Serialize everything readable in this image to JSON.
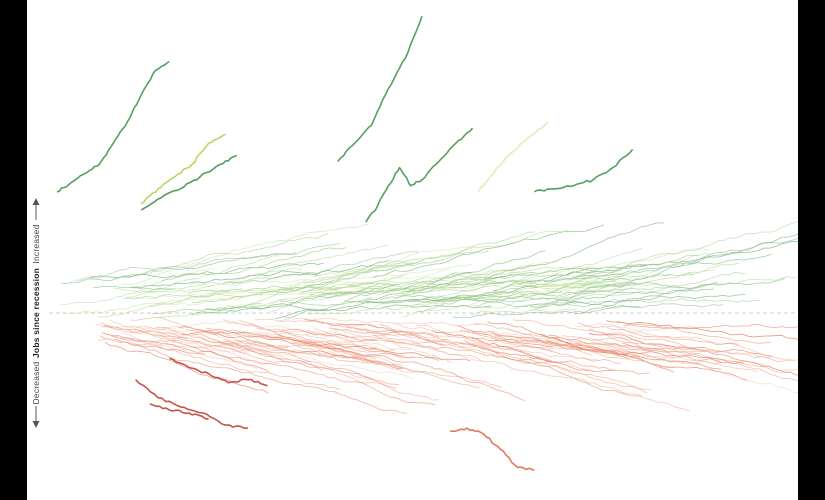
{
  "chart_data": {
    "type": "line",
    "title": "",
    "xlabel": "",
    "ylabel": "Jobs since recession",
    "y_direction_labels": {
      "up": "Increased",
      "down": "Decreased"
    },
    "zero_baseline": "dashed",
    "grid": false,
    "legend": "none",
    "colors": {
      "increase_strong": "#3f8f4e",
      "increase_mid": "#8cc08a",
      "increase_light": "#c9e4a0",
      "increase_lime": "#b5d35a",
      "decrease_light": "#f2b09a",
      "decrease_mid": "#e8795c",
      "decrease_strong": "#c4473a",
      "baseline": "#cfcfcf"
    },
    "series_note": "approximately 200 regional employment trajectories; values are relative change in jobs since the recession (arbitrary units, 0 = no change)",
    "highlight_series": [
      {
        "color": "#4d9a5a",
        "x": [
          0,
          5,
          10,
          15,
          20,
          25,
          30,
          35,
          40
        ],
        "y": [
          0.4,
          0.43,
          0.46,
          0.49,
          0.56,
          0.63,
          0.72,
          0.8,
          0.83
        ]
      },
      {
        "color": "#b5d35a",
        "x": [
          30,
          36,
          42,
          48,
          54,
          60
        ],
        "y": [
          0.36,
          0.41,
          0.45,
          0.49,
          0.56,
          0.59
        ]
      },
      {
        "color": "#4f9557",
        "x": [
          30,
          37,
          44,
          51,
          58,
          64
        ],
        "y": [
          0.34,
          0.38,
          0.41,
          0.45,
          0.49,
          0.52
        ]
      },
      {
        "color": "#4d9a5a",
        "x": [
          100,
          106,
          112,
          118,
          124,
          130
        ],
        "y": [
          0.5,
          0.56,
          0.62,
          0.74,
          0.84,
          0.98
        ]
      },
      {
        "color": "#4d9a5a",
        "x": [
          110,
          114,
          118,
          122,
          126,
          130,
          136,
          142,
          148
        ],
        "y": [
          0.3,
          0.35,
          0.42,
          0.48,
          0.42,
          0.44,
          0.5,
          0.56,
          0.61
        ]
      },
      {
        "color": "#dfecb3",
        "x": [
          150,
          156,
          162,
          168,
          175
        ],
        "y": [
          0.4,
          0.47,
          0.53,
          0.58,
          0.63
        ]
      },
      {
        "color": "#4d9a5a",
        "x": [
          170,
          177,
          184,
          191,
          198,
          205
        ],
        "y": [
          0.4,
          0.41,
          0.42,
          0.44,
          0.48,
          0.54
        ]
      },
      {
        "color": "#c24b3f",
        "x": [
          40,
          47,
          54,
          61,
          68,
          75
        ],
        "y": [
          -0.15,
          -0.18,
          -0.2,
          -0.23,
          -0.22,
          -0.24
        ]
      },
      {
        "color": "#c24b3f",
        "x": [
          28,
          36,
          44,
          52,
          60,
          68
        ],
        "y": [
          -0.22,
          -0.28,
          -0.31,
          -0.33,
          -0.37,
          -0.38
        ]
      },
      {
        "color": "#c24b3f",
        "x": [
          33,
          40,
          47,
          54
        ],
        "y": [
          -0.3,
          -0.32,
          -0.33,
          -0.35
        ]
      },
      {
        "color": "#e5714f",
        "x": [
          140,
          146,
          152,
          158,
          164,
          170
        ],
        "y": [
          -0.39,
          -0.38,
          -0.4,
          -0.45,
          -0.51,
          -0.52
        ]
      }
    ],
    "x_range": [
      0,
      260
    ],
    "y_range": [
      -0.55,
      1.0
    ]
  }
}
